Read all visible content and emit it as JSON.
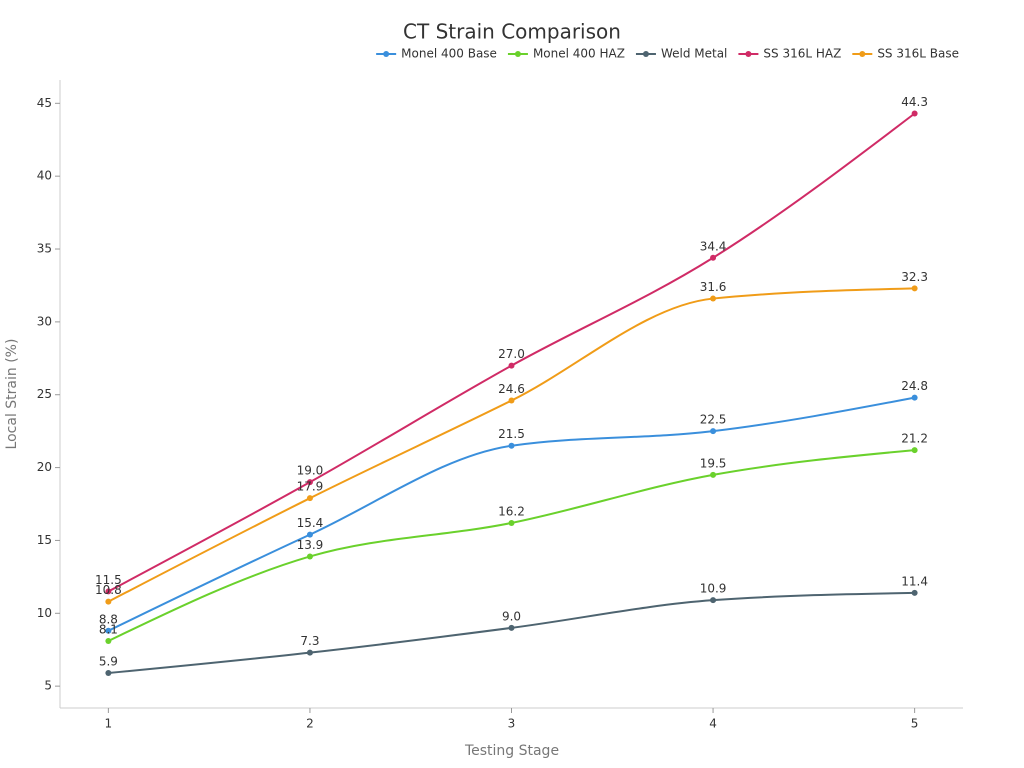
{
  "chart_data": {
    "type": "line",
    "title": "CT Strain Comparison",
    "x_label": "Testing Stage",
    "y_label": "Local Strain (%)",
    "x": [
      1,
      2,
      3,
      4,
      5
    ],
    "xlim": [
      0.76,
      5.24
    ],
    "xticks": [
      1,
      2,
      3,
      4,
      5
    ],
    "ylim": [
      3.5,
      46.6
    ],
    "yticks": [
      5,
      10,
      15,
      20,
      25,
      30,
      35,
      40,
      45
    ],
    "series": [
      {
        "name": "Monel 400 Base",
        "color": "#3a8fdc",
        "values": [
          8.8,
          15.4,
          21.5,
          22.5,
          24.8
        ],
        "value_labels": [
          "8.8",
          "15.4",
          "21.5",
          "22.5",
          "24.8"
        ]
      },
      {
        "name": "Monel 400 HAZ",
        "color": "#6ad12c",
        "values": [
          8.1,
          13.9,
          16.2,
          19.5,
          21.2
        ],
        "value_labels": [
          "8.1",
          "13.9",
          "16.2",
          "19.5",
          "21.2"
        ]
      },
      {
        "name": "Weld Metal",
        "color": "#4e6470",
        "values": [
          5.9,
          7.3,
          9,
          10.9,
          11.4
        ],
        "value_labels": [
          "5.9",
          "7.3",
          "9.0",
          "10.9",
          "11.4"
        ]
      },
      {
        "name": "SS 316L HAZ",
        "color": "#d02b66",
        "values": [
          11.5,
          19,
          27,
          34.4,
          44.3
        ],
        "value_labels": [
          "11.5",
          "19.0",
          "27.0",
          "34.4",
          "44.3"
        ]
      },
      {
        "name": "SS 316L Base",
        "color": "#f09c18",
        "values": [
          10.8,
          17.9,
          24.6,
          31.6,
          32.3
        ],
        "value_labels": [
          "10.8",
          "17.9",
          "24.6",
          "31.6",
          "32.3"
        ]
      }
    ]
  }
}
